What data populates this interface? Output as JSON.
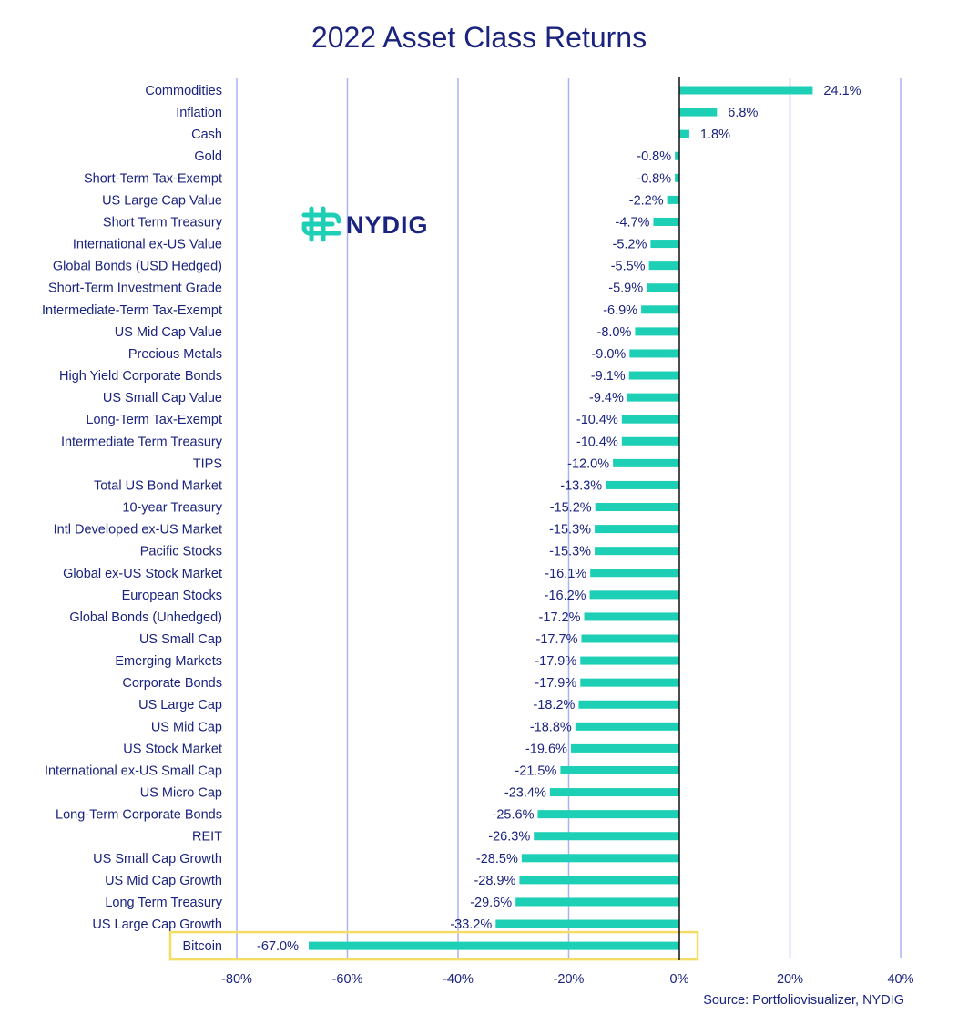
{
  "chart_data": {
    "type": "bar",
    "orientation": "horizontal",
    "title": "2022 Asset Class Returns",
    "source": "Source: Portfoliovisualizer, NYDIG",
    "logo_text": "NYDIG",
    "xlim": [
      -80,
      40
    ],
    "x_ticks": [
      -80,
      -60,
      -40,
      -20,
      0,
      20,
      40
    ],
    "x_tick_labels": [
      "-80%",
      "-60%",
      "-40%",
      "-20%",
      "0%",
      "20%",
      "40%"
    ],
    "grid": "vertical",
    "highlighted_category": "Bitcoin",
    "colors": {
      "bar": "#1ccfb5",
      "text": "#1a237e",
      "grid": "#aab4f0",
      "zero_line": "#111111",
      "highlight_box": "#f4dc66",
      "logo_mark": "#1ccfb5"
    },
    "categories": [
      "Commodities",
      "Inflation",
      "Cash",
      "Gold",
      "Short-Term Tax-Exempt",
      "US Large Cap Value",
      "Short Term Treasury",
      "International ex-US Value",
      "Global Bonds (USD Hedged)",
      "Short-Term Investment Grade",
      "Intermediate-Term Tax-Exempt",
      "US Mid Cap Value",
      "Precious Metals",
      "High Yield Corporate Bonds",
      "US Small Cap Value",
      "Long-Term Tax-Exempt",
      "Intermediate Term Treasury",
      "TIPS",
      "Total US Bond Market",
      "10-year Treasury",
      "Intl Developed ex-US Market",
      "Pacific Stocks",
      "Global ex-US Stock Market",
      "European Stocks",
      "Global Bonds (Unhedged)",
      "US Small Cap",
      "Emerging Markets",
      "Corporate Bonds",
      "US Large Cap",
      "US Mid Cap",
      "US Stock Market",
      "International ex-US Small Cap",
      "US Micro Cap",
      "Long-Term Corporate Bonds",
      "REIT",
      "US Small Cap Growth",
      "US Mid Cap Growth",
      "Long Term Treasury",
      "US Large Cap Growth",
      "Bitcoin"
    ],
    "values": [
      24.1,
      6.8,
      1.8,
      -0.8,
      -0.8,
      -2.2,
      -4.7,
      -5.2,
      -5.5,
      -5.9,
      -6.9,
      -8.0,
      -9.0,
      -9.1,
      -9.4,
      -10.4,
      -10.4,
      -12.0,
      -13.3,
      -15.2,
      -15.3,
      -15.3,
      -16.1,
      -16.2,
      -17.2,
      -17.7,
      -17.9,
      -17.9,
      -18.2,
      -18.8,
      -19.6,
      -21.5,
      -23.4,
      -25.6,
      -26.3,
      -28.5,
      -28.9,
      -29.6,
      -33.2,
      -67.0
    ],
    "value_labels": [
      "24.1%",
      "6.8%",
      "1.8%",
      "-0.8%",
      "-0.8%",
      "-2.2%",
      "-4.7%",
      "-5.2%",
      "-5.5%",
      "-5.9%",
      "-6.9%",
      "-8.0%",
      "-9.0%",
      "-9.1%",
      "-9.4%",
      "-10.4%",
      "-10.4%",
      "-12.0%",
      "-13.3%",
      "-15.2%",
      "-15.3%",
      "-15.3%",
      "-16.1%",
      "-16.2%",
      "-17.2%",
      "-17.7%",
      "-17.9%",
      "-17.9%",
      "-18.2%",
      "-18.8%",
      "-19.6%",
      "-21.5%",
      "-23.4%",
      "-25.6%",
      "-26.3%",
      "-28.5%",
      "-28.9%",
      "-29.6%",
      "-33.2%",
      "-67.0%"
    ]
  }
}
